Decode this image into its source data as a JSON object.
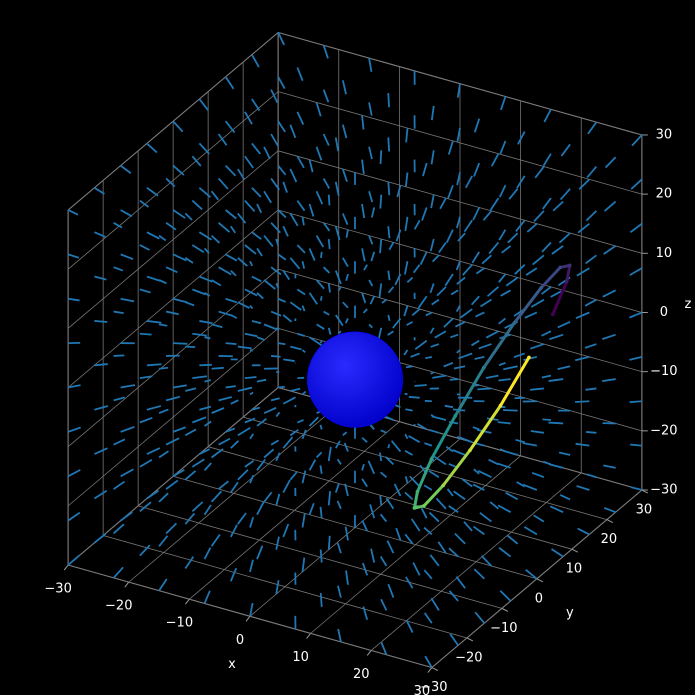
{
  "chart_data": {
    "type": "3d",
    "x_label": "x",
    "y_label": "y",
    "z_label": "z",
    "xlim": [
      -30,
      30
    ],
    "ylim": [
      -30,
      30
    ],
    "zlim": [
      -30,
      30
    ],
    "xticks": [
      {
        "value": -30,
        "label": "−30"
      },
      {
        "value": -20,
        "label": "−20"
      },
      {
        "value": -10,
        "label": "−10"
      },
      0,
      10,
      20,
      30
    ],
    "yticks": [
      {
        "value": -30,
        "label": "−30"
      },
      {
        "value": -20,
        "label": "−20"
      },
      {
        "value": -10,
        "label": "−10"
      },
      0,
      10,
      20,
      30
    ],
    "zticks": [
      {
        "value": -30,
        "label": "−30"
      },
      {
        "value": -20,
        "label": "−20"
      },
      {
        "value": -10,
        "label": "−10"
      },
      0,
      10,
      20,
      30
    ],
    "grid": true,
    "quiver_color": "#1f77b4",
    "sphere": {
      "center": [
        0,
        0,
        -5
      ],
      "radius": 7,
      "color": "#0000ff"
    },
    "trajectory": {
      "colors": [
        "#440154",
        "#3b528b",
        "#21918c",
        "#5ec962",
        "#fde725"
      ],
      "x": [
        28,
        27.2,
        25.1,
        21.8,
        18,
        14.2,
        10.9,
        8.8,
        8,
        8.8,
        10.9,
        14.2,
        18,
        21.8,
        25.1,
        27.2
      ],
      "y": [
        8,
        13.4,
        17.9,
        20.9,
        22,
        20.9,
        17.9,
        13.4,
        8,
        2.6,
        -1.9,
        -4.9,
        -6,
        -4.9,
        -1.9,
        2.6
      ],
      "z": [
        10.1,
        12.7,
        12.6,
        9.8,
        4.7,
        -1.8,
        -8.8,
        -15.3,
        -20.1,
        -22.7,
        -22.6,
        -19.8,
        -14.7,
        -8.2,
        -1.2,
        5.3
      ]
    }
  }
}
